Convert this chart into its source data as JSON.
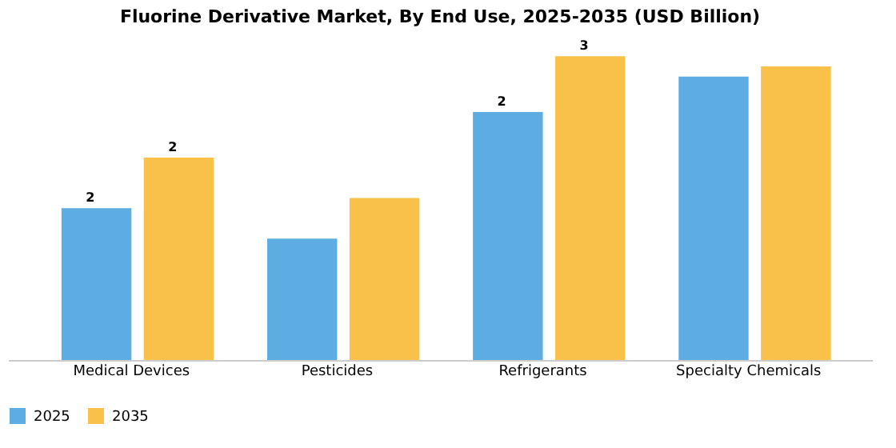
{
  "chart_data": {
    "type": "bar",
    "title": "Fluorine Derivative Market, By End Use, 2025-2035 (USD Billion)",
    "categories": [
      "Medical Devices",
      "Pesticides",
      "Refrigerants",
      "Specialty Chemicals"
    ],
    "series": [
      {
        "name": "2025",
        "color": "#5dade2",
        "values": [
          1.5,
          1.2,
          2.45,
          2.8
        ],
        "value_labels": [
          "2",
          null,
          "2",
          null
        ]
      },
      {
        "name": "2035",
        "color": "#f9c04a",
        "values": [
          2.0,
          1.6,
          3.0,
          2.9
        ],
        "value_labels": [
          "2",
          null,
          "3",
          null
        ]
      }
    ],
    "legend": "bottom",
    "grid": false,
    "tick_labels": "x"
  }
}
